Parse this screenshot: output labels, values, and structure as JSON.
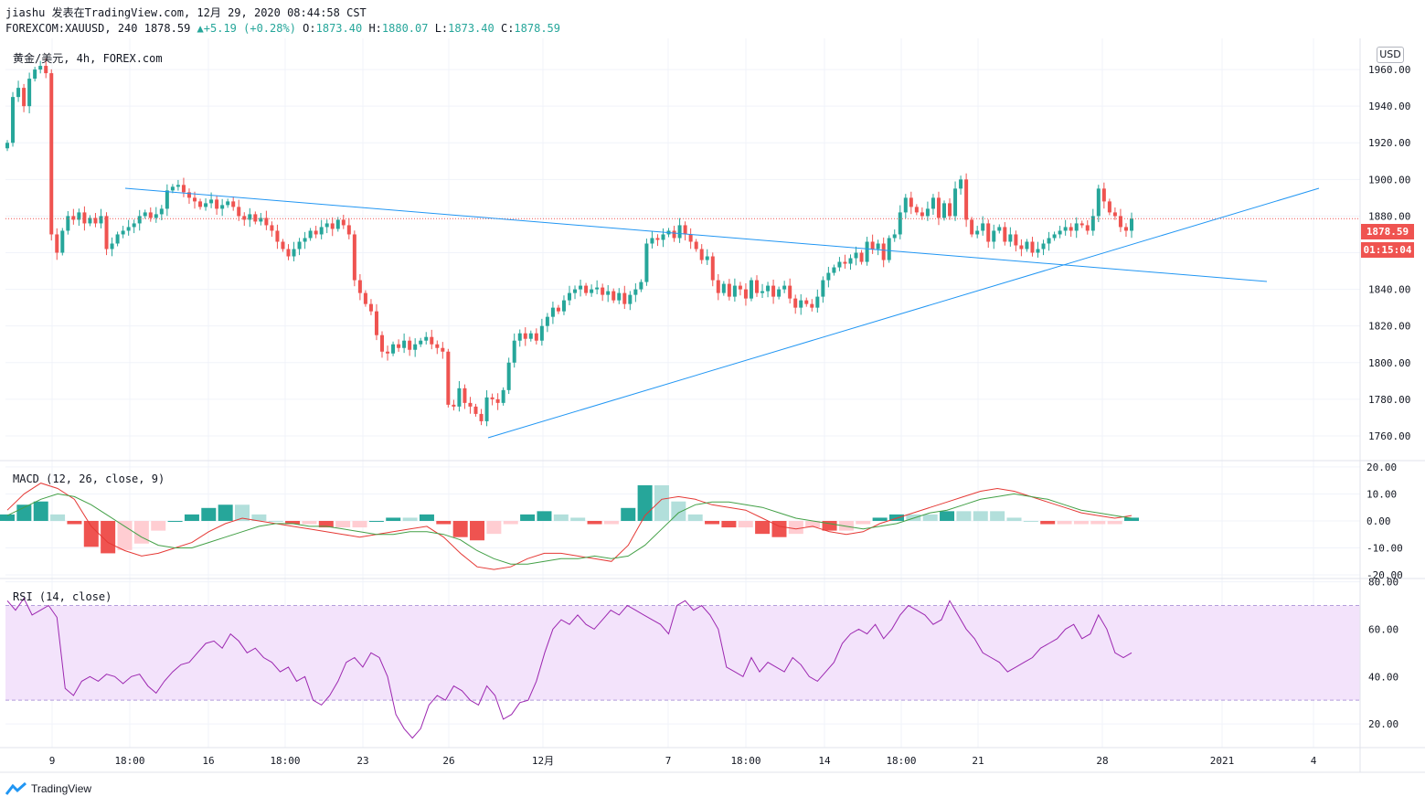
{
  "header": {
    "line1": "jiashu 发表在TradingView.com, 12月 29, 2020 08:44:58 CST",
    "symbol": "FOREXCOM:XAUUSD, 240",
    "last": "1878.59",
    "change": "+5.19 (+0.28%)",
    "o_label": "O:",
    "o": "1873.40",
    "h_label": "H:",
    "h": "1880.07",
    "l_label": "L:",
    "l": "1873.40",
    "c_label": "C:",
    "c": "1878.59"
  },
  "pane_title": "黄金/美元, 4h, FOREX.com",
  "currency": "USD",
  "price_tag": "1878.59",
  "countdown_tag": "01:15:04",
  "macd_title": "MACD (12, 26, close, 9)",
  "rsi_title": "RSI (14, close)",
  "brand": "TradingView",
  "colors": {
    "up": "#26a69a",
    "down": "#ef5350",
    "trend": "#2196f3",
    "macd": "#e53935",
    "signal": "#43a047",
    "rsi": "#9c27b0",
    "rsi_band": "#f3e3fb"
  },
  "chart_data": [
    {
      "type": "candlestick",
      "title": "黄金/美元, 4h, FOREX.com",
      "x_ticks": [
        "9",
        "18:00",
        "16",
        "18:00",
        "23",
        "26",
        "12月",
        "7",
        "18:00",
        "14",
        "18:00",
        "21",
        "28",
        "2021",
        "4"
      ],
      "y_ticks": [
        1760,
        1780,
        1800,
        1820,
        1840,
        1860,
        1880,
        1900,
        1920,
        1940,
        1960
      ],
      "ylim": [
        1747,
        1977
      ],
      "last_price": 1878.59,
      "close_path": [
        1920,
        1945,
        1950,
        1940,
        1955,
        1960,
        1962,
        1958,
        1870,
        1860,
        1872,
        1880,
        1878,
        1882,
        1876,
        1879,
        1876,
        1880,
        1862,
        1865,
        1870,
        1872,
        1874,
        1876,
        1880,
        1882,
        1879,
        1881,
        1884,
        1894,
        1896,
        1897,
        1893,
        1890,
        1888,
        1885,
        1887,
        1889,
        1884,
        1886,
        1888,
        1885,
        1880,
        1878,
        1881,
        1877,
        1879,
        1875,
        1872,
        1866,
        1862,
        1858,
        1862,
        1866,
        1868,
        1872,
        1870,
        1874,
        1876,
        1873,
        1878,
        1875,
        1870,
        1845,
        1838,
        1832,
        1828,
        1815,
        1806,
        1805,
        1810,
        1808,
        1812,
        1807,
        1810,
        1812,
        1814,
        1810,
        1808,
        1806,
        1777,
        1776,
        1786,
        1778,
        1776,
        1772,
        1768,
        1781,
        1780,
        1778,
        1785,
        1800,
        1812,
        1816,
        1813,
        1816,
        1812,
        1820,
        1825,
        1830,
        1828,
        1834,
        1838,
        1840,
        1842,
        1838,
        1840,
        1841,
        1837,
        1839,
        1834,
        1838,
        1832,
        1837,
        1840,
        1844,
        1865,
        1868,
        1867,
        1870,
        1872,
        1868,
        1875,
        1870,
        1866,
        1862,
        1856,
        1858,
        1845,
        1838,
        1843,
        1836,
        1842,
        1840,
        1835,
        1845,
        1838,
        1839,
        1842,
        1836,
        1840,
        1842,
        1835,
        1830,
        1834,
        1832,
        1830,
        1836,
        1845,
        1849,
        1852,
        1855,
        1854,
        1857,
        1860,
        1855,
        1866,
        1862,
        1865,
        1856,
        1868,
        1870,
        1882,
        1890,
        1885,
        1882,
        1880,
        1884,
        1890,
        1879,
        1887,
        1880,
        1895,
        1900,
        1878,
        1870,
        1872,
        1876,
        1866,
        1872,
        1874,
        1866,
        1870,
        1864,
        1862,
        1866,
        1860,
        1862,
        1865,
        1868,
        1870,
        1872,
        1874,
        1872,
        1876,
        1875,
        1872,
        1880,
        1895,
        1888,
        1882,
        1880,
        1874,
        1872,
        1878.59
      ],
      "trendlines": [
        {
          "from": [
            0,
            1904
          ],
          "to": [
            1385,
            1850
          ]
        },
        {
          "from": [
            0,
            1757
          ],
          "to": [
            1443,
            1904
          ]
        }
      ]
    },
    {
      "type": "line+bar",
      "title": "MACD (12, 26, close, 9)",
      "y_ticks": [
        20,
        10,
        0,
        -10,
        -20
      ],
      "ylim": [
        -21,
        22
      ],
      "series": [
        {
          "name": "MACD",
          "values": [
            4,
            10,
            14,
            12,
            8,
            -2,
            -8,
            -11,
            -13,
            -12,
            -10,
            -8,
            -4,
            -1,
            1,
            0,
            -1,
            -2,
            -3,
            -4,
            -5,
            -6,
            -5,
            -4,
            -3,
            -2,
            -6,
            -12,
            -17,
            -18,
            -17,
            -14,
            -12,
            -12,
            -13,
            -14,
            -15,
            -9,
            2,
            8,
            9,
            8,
            6,
            5,
            4,
            1,
            -2,
            -3,
            -2,
            -4,
            -5,
            -4,
            -1,
            1,
            3,
            5,
            7,
            9,
            11,
            12,
            11,
            9,
            7,
            5,
            3,
            2,
            1,
            2
          ]
        },
        {
          "name": "Signal",
          "values": [
            2,
            5,
            8,
            10,
            9,
            6,
            2,
            -2,
            -6,
            -9,
            -10,
            -10,
            -8,
            -6,
            -4,
            -2,
            -1,
            -1,
            -2,
            -2,
            -3,
            -4,
            -5,
            -5,
            -4,
            -4,
            -5,
            -7,
            -11,
            -14,
            -16,
            -16,
            -15,
            -14,
            -14,
            -13,
            -14,
            -13,
            -9,
            -3,
            3,
            6,
            7,
            7,
            6,
            5,
            3,
            1,
            0,
            -1,
            -2,
            -3,
            -2,
            -1,
            1,
            3,
            4,
            6,
            8,
            9,
            10,
            9,
            8,
            6,
            4,
            3,
            2,
            1
          ]
        }
      ]
    },
    {
      "type": "line",
      "title": "RSI (14, close)",
      "y_ticks": [
        80,
        60,
        40,
        20
      ],
      "ylim": [
        10,
        81
      ],
      "band": [
        30,
        70
      ],
      "values": [
        72,
        68,
        73,
        66,
        68,
        70,
        65,
        35,
        32,
        38,
        40,
        38,
        41,
        40,
        37,
        40,
        41,
        36,
        33,
        38,
        42,
        45,
        46,
        50,
        54,
        55,
        52,
        58,
        55,
        50,
        52,
        48,
        46,
        42,
        44,
        38,
        40,
        30,
        28,
        32,
        38,
        46,
        48,
        44,
        50,
        48,
        40,
        24,
        18,
        14,
        18,
        28,
        32,
        30,
        36,
        34,
        30,
        28,
        36,
        32,
        22,
        24,
        29,
        30,
        38,
        50,
        60,
        64,
        62,
        66,
        62,
        60,
        64,
        68,
        66,
        70,
        68,
        66,
        64,
        62,
        58,
        70,
        72,
        68,
        70,
        66,
        60,
        44,
        42,
        40,
        48,
        42,
        46,
        44,
        42,
        48,
        45,
        40,
        38,
        42,
        46,
        54,
        58,
        60,
        58,
        62,
        56,
        60,
        66,
        70,
        68,
        66,
        62,
        64,
        72,
        66,
        60,
        56,
        50,
        48,
        46,
        42,
        44,
        46,
        48,
        52,
        54,
        56,
        60,
        62,
        56,
        58,
        66,
        60,
        50,
        48,
        50
      ]
    }
  ]
}
